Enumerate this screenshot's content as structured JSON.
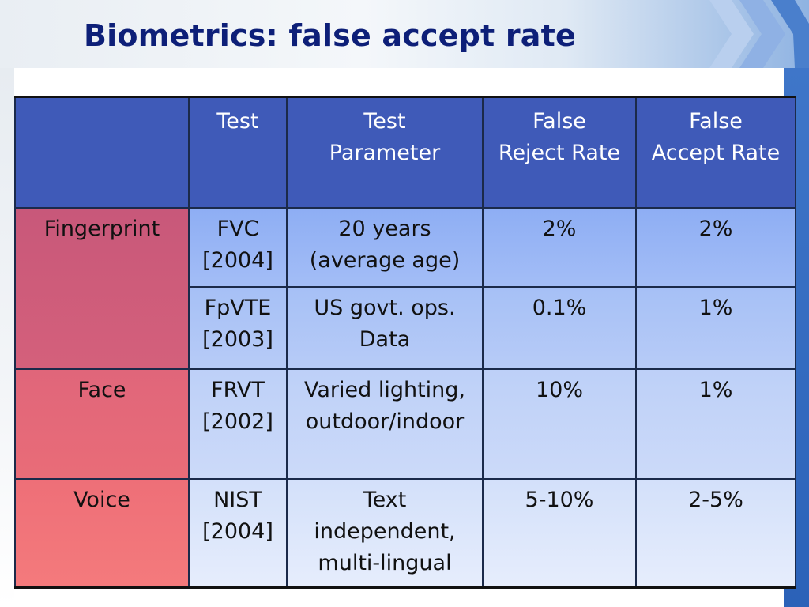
{
  "title": "Biometrics: false accept rate",
  "table": {
    "headers": [
      "",
      "Test",
      "Test\nParameter",
      "False\nReject Rate",
      "False\nAccept Rate"
    ],
    "groups": [
      {
        "label": "Fingerprint",
        "rows": [
          {
            "test": "FVC\n[2004]",
            "parameter": "20 years\n(average age)",
            "frr": "2%",
            "far": "2%"
          },
          {
            "test": "FpVTE\n[2003]",
            "parameter": "US govt. ops.\nData",
            "frr": "0.1%",
            "far": "1%"
          }
        ]
      },
      {
        "label": "Face",
        "rows": [
          {
            "test": "FRVT\n[2002]",
            "parameter": "Varied lighting,\noutdoor/indoor",
            "frr": "10%",
            "far": "1%"
          }
        ]
      },
      {
        "label": "Voice",
        "rows": [
          {
            "test": "NIST\n[2004]",
            "parameter": "Text\nindependent,\nmulti-lingual",
            "frr": "5-10%",
            "far": "2-5%"
          }
        ]
      }
    ]
  },
  "colors": {
    "title": "#0d1f78",
    "header_bg": "#3f5ab8",
    "accent_bar": "#2b62b8"
  }
}
